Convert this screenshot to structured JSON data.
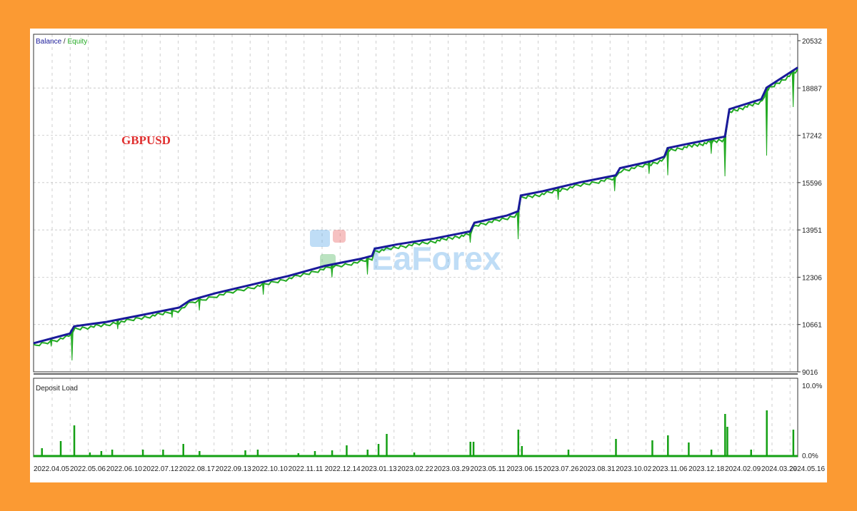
{
  "colors": {
    "balance": "#1a1a9a",
    "equity": "#22aa22",
    "deposit": "#14a014",
    "background": "#fb9a33",
    "symbol": "#e03030"
  },
  "watermark": {
    "text": "EaForex"
  },
  "chart_data": [
    {
      "type": "line",
      "legend": {
        "balance": "Balance",
        "separator": " / ",
        "equity": "Equity",
        "placement": "top-left"
      },
      "annotation": "GBPUSD",
      "grid": true,
      "ylim": [
        9016,
        20532
      ],
      "yticks": [
        "20532",
        "18887",
        "17242",
        "15596",
        "13951",
        "12306",
        "10661",
        "9016"
      ],
      "xticks": [
        "2022.04.05",
        "2022.05.06",
        "2022.06.10",
        "2022.07.12",
        "2022.08.17",
        "2022.09.13",
        "2022.10.10",
        "2022.11.11",
        "2022.12.14",
        "2023.01.13",
        "2023.02.22",
        "2023.03.29",
        "2023.05.11",
        "2023.06.15",
        "2023.07.26",
        "2023.08.31",
        "2023.10.02",
        "2023.11.06",
        "2023.12.18",
        "2024.02.09",
        "2024.03.29",
        "2024.05.16"
      ],
      "series": [
        {
          "name": "Balance",
          "points": [
            [
              "2022.04.05",
              10010
            ],
            [
              "2022.05.06",
              10350
            ],
            [
              "2022.05.10",
              10600
            ],
            [
              "2022.06.10",
              10750
            ],
            [
              "2022.07.12",
              11000
            ],
            [
              "2022.08.17",
              11250
            ],
            [
              "2022.08.25",
              11500
            ],
            [
              "2022.09.13",
              11750
            ],
            [
              "2022.10.10",
              12050
            ],
            [
              "2022.11.11",
              12350
            ],
            [
              "2022.12.14",
              12700
            ],
            [
              "2023.01.13",
              12950
            ],
            [
              "2023.01.25",
              13050
            ],
            [
              "2023.01.28",
              13300
            ],
            [
              "2023.02.22",
              13450
            ],
            [
              "2023.03.29",
              13650
            ],
            [
              "2023.05.11",
              13900
            ],
            [
              "2023.05.15",
              14200
            ],
            [
              "2023.06.15",
              14450
            ],
            [
              "2023.06.28",
              14600
            ],
            [
              "2023.07.01",
              15150
            ],
            [
              "2023.07.26",
              15300
            ],
            [
              "2023.08.31",
              15600
            ],
            [
              "2023.10.02",
              15850
            ],
            [
              "2023.10.06",
              16100
            ],
            [
              "2023.11.06",
              16350
            ],
            [
              "2023.11.20",
              16500
            ],
            [
              "2023.11.24",
              16800
            ],
            [
              "2023.12.18",
              16950
            ],
            [
              "2024.02.09",
              17200
            ],
            [
              "2024.02.15",
              18150
            ],
            [
              "2024.03.29",
              18500
            ],
            [
              "2024.04.05",
              18900
            ],
            [
              "2024.05.16",
              19600
            ]
          ]
        },
        {
          "name": "Equity",
          "dips": [
            [
              "2022.04.20",
              9900
            ],
            [
              "2022.05.08",
              9413
            ],
            [
              "2022.06.20",
              10500
            ],
            [
              "2022.08.10",
              10900
            ],
            [
              "2022.09.01",
              11150
            ],
            [
              "2022.10.20",
              11700
            ],
            [
              "2022.12.20",
              12300
            ],
            [
              "2023.01.20",
              12400
            ],
            [
              "2023.05.11",
              13508
            ],
            [
              "2023.06.28",
              13630
            ],
            [
              "2023.08.10",
              15000
            ],
            [
              "2023.10.01",
              15300
            ],
            [
              "2023.11.03",
              15900
            ],
            [
              "2023.11.24",
              15850
            ],
            [
              "2024.01.20",
              16600
            ],
            [
              "2024.02.09",
              15816
            ],
            [
              "2024.04.05",
              16536
            ],
            [
              "2024.05.10",
              18224
            ]
          ]
        }
      ]
    },
    {
      "type": "bar",
      "title": "Deposit Load",
      "ylim": [
        0,
        10
      ],
      "yticks": [
        "10.0%",
        "0.0%"
      ],
      "values": [
        [
          "2022.04.12",
          1.2
        ],
        [
          "2022.04.28",
          2.2
        ],
        [
          "2022.05.10",
          4.4
        ],
        [
          "2022.05.25",
          0.6
        ],
        [
          "2022.06.05",
          0.8
        ],
        [
          "2022.06.15",
          1.0
        ],
        [
          "2022.07.12",
          1.0
        ],
        [
          "2022.08.01",
          1.0
        ],
        [
          "2022.08.20",
          1.8
        ],
        [
          "2022.09.01",
          0.8
        ],
        [
          "2022.10.05",
          0.9
        ],
        [
          "2022.10.15",
          1.0
        ],
        [
          "2022.11.20",
          0.5
        ],
        [
          "2022.12.05",
          0.8
        ],
        [
          "2022.12.20",
          0.9
        ],
        [
          "2023.01.01",
          1.6
        ],
        [
          "2023.01.20",
          1.0
        ],
        [
          "2023.02.01",
          1.8
        ],
        [
          "2023.02.10",
          3.2
        ],
        [
          "2023.03.10",
          0.6
        ],
        [
          "2023.05.11",
          2.1
        ],
        [
          "2023.05.14",
          2.1
        ],
        [
          "2023.06.28",
          3.8
        ],
        [
          "2023.07.02",
          1.5
        ],
        [
          "2023.08.20",
          1.0
        ],
        [
          "2023.10.02",
          2.5
        ],
        [
          "2023.11.06",
          2.3
        ],
        [
          "2023.11.24",
          3.0
        ],
        [
          "2023.12.18",
          2.0
        ],
        [
          "2024.01.20",
          1.0
        ],
        [
          "2024.02.09",
          6.0
        ],
        [
          "2024.02.12",
          4.2
        ],
        [
          "2024.03.15",
          1.0
        ],
        [
          "2024.04.05",
          6.5
        ],
        [
          "2024.05.10",
          3.8
        ]
      ]
    }
  ]
}
